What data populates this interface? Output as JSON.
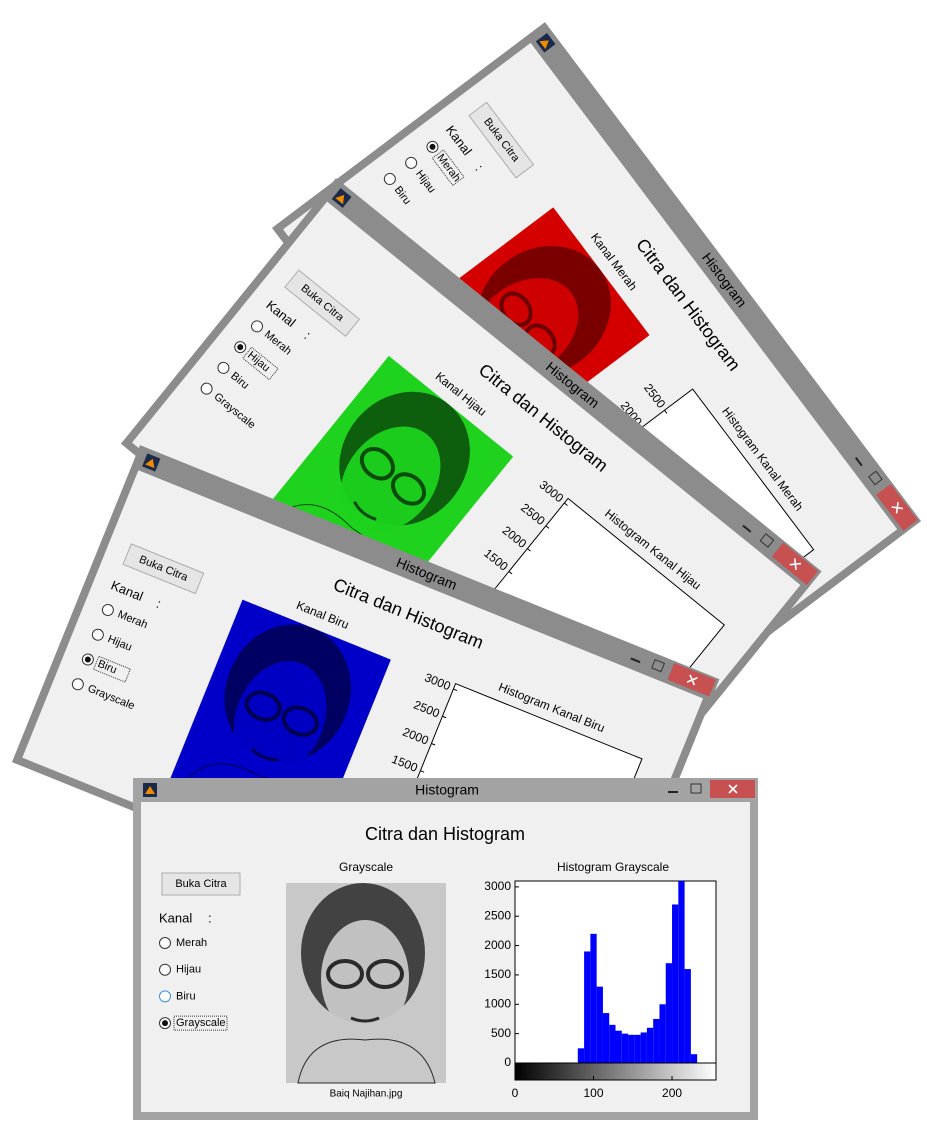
{
  "windows": [
    {
      "title": "Histogram",
      "heading": "Citra dan Histogram",
      "button": "Buka Citra",
      "kanal_label": "Kanal",
      "colon": ":",
      "options": [
        "Merah",
        "Hijau",
        "Biru"
      ],
      "selected": 0,
      "image_label": "Kanal Merah",
      "image_color": "#d40000",
      "image_dark": "#6a0000",
      "histogram": {
        "title": "Histogram Kanal Merah",
        "ylim": [
          0,
          3100
        ],
        "yticks": [
          2000,
          2500
        ]
      }
    },
    {
      "title": "Histogram",
      "heading": "Citra dan Histogram",
      "button": "Buka Citra",
      "kanal_label": "Kanal",
      "colon": ":",
      "options": [
        "Merah",
        "Hijau",
        "Biru",
        "Grayscale"
      ],
      "selected": 1,
      "image_label": "Kanal Hijau",
      "image_color": "#1ed21e",
      "image_dark": "#0a4a0a",
      "histogram": {
        "title": "Histogram Kanal Hijau",
        "ylim": [
          0,
          3100
        ],
        "yticks": [
          1500,
          2000,
          2500,
          3000
        ]
      }
    },
    {
      "title": "Histogram",
      "heading": "Citra dan Histogram",
      "button": "Buka Citra",
      "kanal_label": "Kanal",
      "colon": ":",
      "options": [
        "Merah",
        "Hijau",
        "Biru",
        "Grayscale"
      ],
      "selected": 2,
      "image_label": "Kanal Biru",
      "image_color": "#0000c8",
      "image_dark": "#000050",
      "histogram": {
        "title": "Histogram Kanal Biru",
        "ylim": [
          0,
          3100
        ],
        "yticks": [
          1500,
          2000,
          2500,
          3000
        ]
      }
    },
    {
      "title": "Histogram",
      "heading": "Citra dan Histogram",
      "button": "Buka Citra",
      "kanal_label": "Kanal",
      "colon": ":",
      "options": [
        "Merah",
        "Hijau",
        "Biru",
        "Grayscale"
      ],
      "selected": 3,
      "image_label": "Grayscale",
      "image_color": "#c8c8c8",
      "image_dark": "#2a2a2a",
      "filename": "Baiq Najihan.jpg",
      "histogram": {
        "type": "histogram",
        "title": "Histogram Grayscale",
        "color": "#0000ff",
        "bins": [
          0,
          8,
          16,
          24,
          32,
          40,
          48,
          56,
          64,
          72,
          80,
          88,
          96,
          104,
          112,
          120,
          128,
          136,
          144,
          152,
          160,
          168,
          176,
          184,
          192,
          200,
          208,
          216,
          224,
          232,
          240,
          248,
          256
        ],
        "values": [
          0,
          0,
          0,
          0,
          0,
          0,
          0,
          0,
          0,
          0,
          250,
          1900,
          2200,
          1300,
          850,
          650,
          550,
          500,
          480,
          480,
          520,
          600,
          750,
          1000,
          1700,
          2700,
          3100,
          1600,
          150,
          0,
          0,
          0
        ],
        "xlim": [
          0,
          256
        ],
        "xticks": [
          0,
          100,
          200
        ],
        "ylim": [
          0,
          3100
        ],
        "yticks": [
          0,
          500,
          1000,
          1500,
          2000,
          2500,
          3000
        ]
      }
    }
  ]
}
